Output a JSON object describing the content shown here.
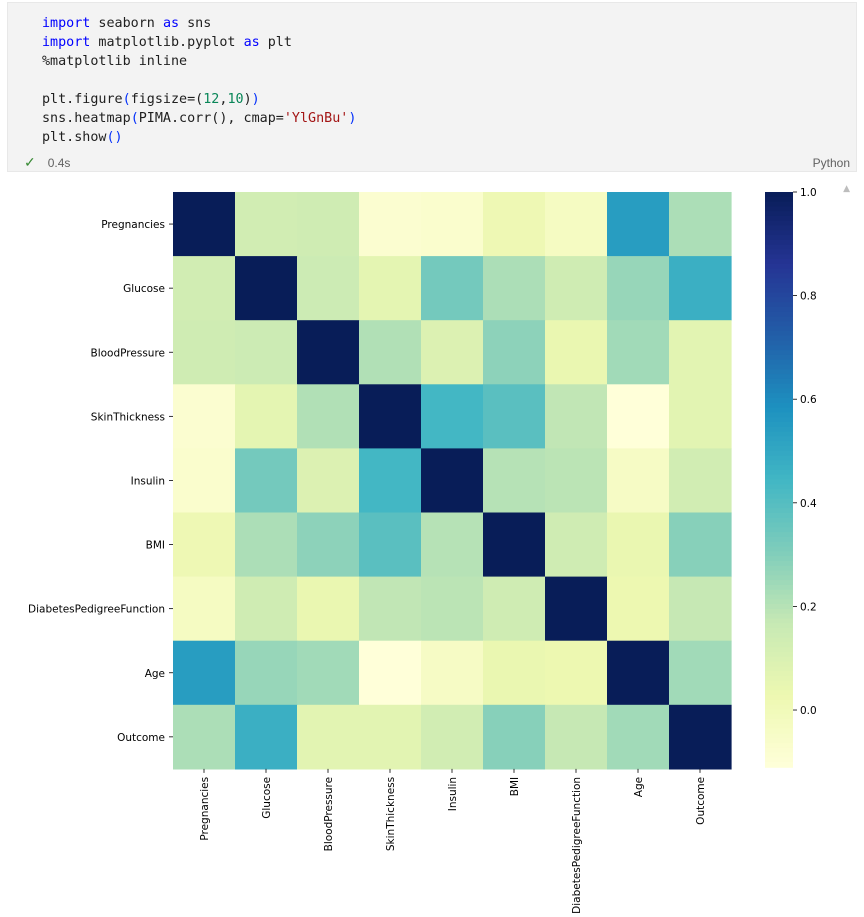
{
  "cell": {
    "code_lines": [
      [
        {
          "t": "import",
          "c": "kw"
        },
        {
          "t": " seaborn "
        },
        {
          "t": "as",
          "c": "kw"
        },
        {
          "t": " sns"
        }
      ],
      [
        {
          "t": "import",
          "c": "kw"
        },
        {
          "t": " matplotlib.pyplot "
        },
        {
          "t": "as",
          "c": "kw"
        },
        {
          "t": " plt"
        }
      ],
      [
        {
          "t": "%matplotlib inline"
        }
      ],
      [],
      [
        {
          "t": "plt.figure"
        },
        {
          "t": "(",
          "c": "paren"
        },
        {
          "t": "figsize=("
        },
        {
          "t": "12",
          "c": "num"
        },
        {
          "t": ","
        },
        {
          "t": "10",
          "c": "num"
        },
        {
          "t": ")"
        },
        {
          "t": ")",
          "c": "paren"
        }
      ],
      [
        {
          "t": "sns.heatmap"
        },
        {
          "t": "(",
          "c": "paren"
        },
        {
          "t": "PIMA.corr(), cmap="
        },
        {
          "t": "'YlGnBu'",
          "c": "str"
        },
        {
          "t": ")",
          "c": "paren"
        }
      ],
      [
        {
          "t": "plt.show"
        },
        {
          "t": "()",
          "c": "paren"
        }
      ]
    ],
    "status_check": "✓",
    "exec_time": "0.4s",
    "language": "Python"
  },
  "colors": {
    "code_keyword": "#0000ff",
    "code_string": "#a31515",
    "code_number": "#098658",
    "cell_background": "#f3f3f3",
    "success_check": "#388a34"
  },
  "chart_data": {
    "type": "heatmap",
    "colormap": "YlGnBu",
    "labels": [
      "Pregnancies",
      "Glucose",
      "BloodPressure",
      "SkinThickness",
      "Insulin",
      "BMI",
      "DiabetesPedigreeFunction",
      "Age",
      "Outcome"
    ],
    "values": [
      [
        1.0,
        0.13,
        0.14,
        -0.08,
        -0.07,
        0.02,
        -0.03,
        0.54,
        0.22
      ],
      [
        0.13,
        1.0,
        0.15,
        0.06,
        0.33,
        0.22,
        0.14,
        0.26,
        0.47
      ],
      [
        0.14,
        0.15,
        1.0,
        0.21,
        0.09,
        0.28,
        0.04,
        0.24,
        0.07
      ],
      [
        -0.08,
        0.06,
        0.21,
        1.0,
        0.44,
        0.39,
        0.18,
        -0.11,
        0.07
      ],
      [
        -0.07,
        0.33,
        0.09,
        0.44,
        1.0,
        0.2,
        0.19,
        -0.04,
        0.13
      ],
      [
        0.02,
        0.22,
        0.28,
        0.39,
        0.2,
        1.0,
        0.14,
        0.04,
        0.29
      ],
      [
        -0.03,
        0.14,
        0.04,
        0.18,
        0.19,
        0.14,
        1.0,
        0.03,
        0.17
      ],
      [
        0.54,
        0.26,
        0.24,
        -0.11,
        -0.04,
        0.04,
        0.03,
        1.0,
        0.24
      ],
      [
        0.22,
        0.47,
        0.07,
        0.07,
        0.13,
        0.29,
        0.17,
        0.24,
        1.0
      ]
    ],
    "vmin": -0.11,
    "vmax": 1.0,
    "colorbar_ticks": [
      1.0,
      0.8,
      0.6,
      0.4,
      0.2,
      0.0
    ],
    "colorbar_tick_labels": [
      "1.0",
      "0.8",
      "0.6",
      "0.4",
      "0.2",
      "0.0"
    ]
  }
}
